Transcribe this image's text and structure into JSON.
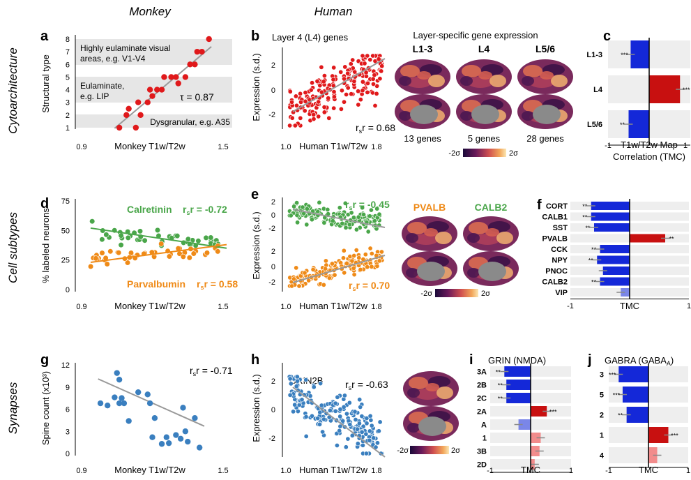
{
  "headers": {
    "monkey": "Monkey",
    "human": "Human"
  },
  "rows": {
    "cyto": "Cytoarchitecture",
    "cell": "Cell subtypes",
    "syn": "Synapses"
  },
  "colors": {
    "red": "#e0191b",
    "green": "#4aa64a",
    "orange": "#ef8a17",
    "blue": "#3a7fbf",
    "navy": "#1428d8",
    "darkred": "#c81010"
  },
  "panels": {
    "a": {
      "letter": "a",
      "xlabel": "Monkey T1w/T2w",
      "ylabel": "Structural type",
      "band_top_1": "Highly eulaminate visual",
      "band_top_2": "areas, e.g. V1-V4",
      "band_mid_1": "Eulaminate,",
      "band_mid_2": "e.g. LIP",
      "band_low": "Dysgranular, e.g. A35",
      "stat": "τ = 0.87",
      "xticks": [
        "0.9",
        "1.5"
      ],
      "yticks": [
        "1",
        "2",
        "3",
        "4",
        "5",
        "6",
        "7",
        "8"
      ]
    },
    "b": {
      "letter": "b",
      "title": "Layer 4 (L4) genes",
      "xlabel": "Human T1w/T2w",
      "ylabel": "Expression (s.d.)",
      "stat": "r = 0.68",
      "stat_sub": "s",
      "xticks": [
        "1.0",
        "1.8"
      ],
      "yticks": [
        "2",
        "0",
        "-2"
      ]
    },
    "brain1": {
      "title": "Layer-specific gene expression",
      "cols": [
        "L1-3",
        "L4",
        "L5/6"
      ],
      "counts": [
        "13 genes",
        "5 genes",
        "28 genes"
      ],
      "cb_lo": "-2σ",
      "cb_hi": "2σ"
    },
    "c": {
      "letter": "c",
      "xlabel_1": "T1w/T2w Map",
      "xlabel_2": "Correlation (TMC)",
      "xticks": [
        "-1",
        "1"
      ]
    },
    "d": {
      "letter": "d",
      "xlabel": "Monkey T1w/T2w",
      "ylabel": "% labeled neurons",
      "calretinin": "Calretinin",
      "calretinin_stat": "r = -0.72",
      "parvalbumin": "Parvalbumin",
      "parvalbumin_stat": "r = 0.58",
      "stat_sub": "s",
      "xticks": [
        "0.9",
        "1.5"
      ],
      "yticks": [
        "0",
        "25",
        "50",
        "75"
      ]
    },
    "e": {
      "letter": "e",
      "ylabel": "Expression (s.d.)",
      "xlabel": "Human T1w/T2w",
      "stat_top": "r = -0.45",
      "stat_bot": "r = 0.70",
      "stat_sub": "s",
      "xticks": [
        "1.0",
        "1.8"
      ],
      "yticks_top": [
        "2",
        "0",
        "-2"
      ],
      "yticks_bot": [
        "2",
        "0",
        "-2"
      ],
      "gene1": "PVALB",
      "gene2": "CALB2",
      "cb_lo": "-2σ",
      "cb_hi": "2σ"
    },
    "f": {
      "letter": "f",
      "xlabel": "TMC",
      "xticks": [
        "-1",
        "0",
        "1"
      ]
    },
    "g": {
      "letter": "g",
      "xlabel": "Monkey T1w/T2w",
      "ylabel": "Spine count (x10³)",
      "stat": "r = -0.71",
      "stat_sub": "s",
      "xticks": [
        "0.9",
        "1.5"
      ],
      "yticks": [
        "0",
        "3",
        "6",
        "9",
        "12"
      ]
    },
    "h": {
      "letter": "h",
      "title": "GRIN2B",
      "xlabel": "Human T1w/T2w",
      "ylabel": "Expression (s.d.)",
      "stat": "r = -0.63",
      "stat_sub": "s",
      "xticks": [
        "1.0",
        "1.8"
      ],
      "yticks": [
        "2",
        "0",
        "-2"
      ],
      "cb_lo": "-2σ",
      "cb_hi": "2σ"
    },
    "i": {
      "letter": "i",
      "title": "GRIN (NMDA)",
      "xlabel": "TMC",
      "xticks": [
        "-1",
        "0",
        "1"
      ]
    },
    "j": {
      "letter": "j",
      "title": "GABRA (GABA",
      "title_sub": "A",
      "title_end": ")",
      "xlabel": "TMC",
      "xticks": [
        "-1",
        "0",
        "1"
      ]
    }
  },
  "chart_data": [
    {
      "id": "a",
      "type": "scatter",
      "xlim": [
        0.9,
        1.5
      ],
      "ylim": [
        1,
        8
      ],
      "tau": 0.87,
      "x": [
        1.06,
        1.09,
        1.13,
        1.1,
        1.15,
        1.14,
        1.18,
        1.2,
        1.19,
        1.22,
        1.24,
        1.25,
        1.28,
        1.3,
        1.31,
        1.34,
        1.36,
        1.38,
        1.39,
        1.41,
        1.44
      ],
      "y": [
        1,
        2,
        1,
        2.5,
        2,
        3,
        3,
        3.5,
        4,
        4,
        4,
        5,
        5,
        5,
        4.5,
        5,
        6,
        6,
        7,
        7,
        8
      ]
    },
    {
      "id": "b",
      "type": "scatter",
      "xlim": [
        1.0,
        1.8
      ],
      "ylim": [
        -2.5,
        2.5
      ],
      "rs": 0.68
    },
    {
      "id": "c",
      "type": "bar",
      "categories": [
        "L1-3",
        "L4",
        "L5/6"
      ],
      "values": [
        -0.45,
        0.75,
        -0.5
      ],
      "significance": [
        "***",
        "***",
        "**"
      ],
      "xlim": [
        -1,
        1
      ]
    },
    {
      "id": "d",
      "type": "scatter",
      "xlim": [
        0.9,
        1.5
      ],
      "ylim": [
        0,
        75
      ],
      "series": [
        {
          "name": "Calretinin",
          "rs": -0.72
        },
        {
          "name": "Parvalbumin",
          "rs": 0.58
        }
      ]
    },
    {
      "id": "e",
      "type": "scatter",
      "xlim": [
        1.0,
        1.8
      ],
      "series": [
        {
          "name": "CALB2",
          "rs": -0.45
        },
        {
          "name": "PVALB",
          "rs": 0.7
        }
      ]
    },
    {
      "id": "f",
      "type": "bar",
      "categories": [
        "CORT",
        "CALB1",
        "SST",
        "PVALB",
        "CCK",
        "NPY",
        "PNOC",
        "CALB2",
        "VIP"
      ],
      "values": [
        -0.65,
        -0.65,
        -0.6,
        0.6,
        -0.5,
        -0.55,
        -0.45,
        -0.5,
        -0.15
      ],
      "significance": [
        "**",
        "**",
        "**",
        "**",
        "**",
        "**",
        "",
        "**",
        ""
      ],
      "xlim": [
        -1,
        1
      ]
    },
    {
      "id": "g",
      "type": "scatter",
      "xlim": [
        0.9,
        1.5
      ],
      "ylim": [
        0,
        12
      ],
      "rs": -0.71,
      "x": [
        0.98,
        1.01,
        1.04,
        1.05,
        1.06,
        1.06,
        1.07,
        1.08,
        1.1,
        1.14,
        1.18,
        1.19,
        1.2,
        1.21,
        1.24,
        1.26,
        1.27,
        1.3,
        1.32,
        1.33,
        1.34,
        1.35,
        1.38,
        1.4
      ],
      "y": [
        6.8,
        6.5,
        7.6,
        10.9,
        10,
        6.8,
        7.5,
        6.8,
        4.4,
        8.3,
        8,
        6.8,
        2.2,
        4.8,
        1.3,
        2.2,
        1.4,
        2.5,
        2,
        6.2,
        3,
        1.6,
        4.8,
        0.8
      ]
    },
    {
      "id": "h",
      "type": "scatter",
      "xlim": [
        1.0,
        1.8
      ],
      "ylim": [
        -2.5,
        2.5
      ],
      "rs": -0.63
    },
    {
      "id": "i",
      "type": "bar",
      "categories": [
        "3A",
        "2B",
        "2C",
        "2A",
        "A",
        "1",
        "3B",
        "2D"
      ],
      "values": [
        -0.65,
        -0.6,
        -0.6,
        0.4,
        -0.3,
        0.25,
        0.22,
        0.1
      ],
      "significance": [
        "**",
        "**",
        "**",
        "***",
        "",
        "",
        "",
        ""
      ],
      "xlim": [
        -1,
        1
      ]
    },
    {
      "id": "j",
      "type": "bar",
      "categories": [
        "3",
        "5",
        "2",
        "1",
        "4"
      ],
      "values": [
        -0.75,
        -0.65,
        -0.55,
        0.5,
        0.22
      ],
      "significance": [
        "***",
        "***",
        "**",
        "***",
        ""
      ],
      "xlim": [
        -1,
        1
      ]
    }
  ]
}
